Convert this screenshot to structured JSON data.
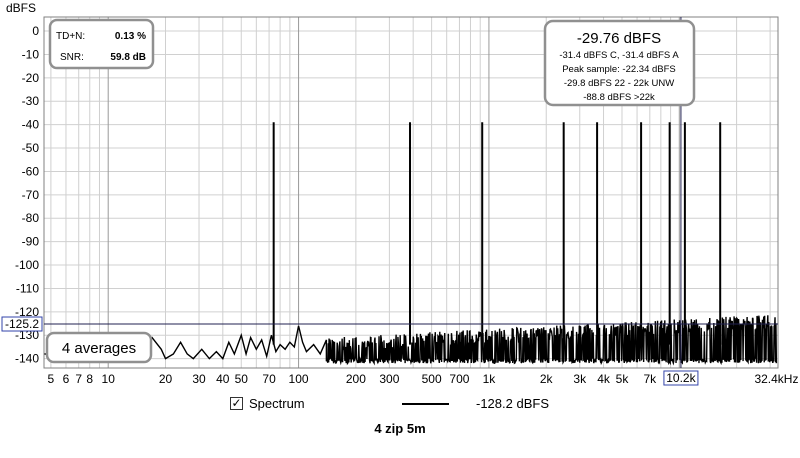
{
  "chart_data": {
    "type": "line",
    "ylabel": "dBFS",
    "y_ticks": [
      0,
      -10,
      -20,
      -30,
      -40,
      -50,
      -60,
      -70,
      -80,
      -90,
      -100,
      -110,
      -120,
      -130,
      -140
    ],
    "ylim": [
      -144,
      6
    ],
    "x_scale": "log",
    "xlim": [
      4.6,
      33000
    ],
    "x_tick_labels": [
      {
        "x": 5,
        "label": "5"
      },
      {
        "x": 6,
        "label": "6"
      },
      {
        "x": 7,
        "label": "7"
      },
      {
        "x": 8,
        "label": "8"
      },
      {
        "x": 10,
        "label": "10"
      },
      {
        "x": 20,
        "label": "20"
      },
      {
        "x": 30,
        "label": "30"
      },
      {
        "x": 40,
        "label": "40"
      },
      {
        "x": 50,
        "label": "50"
      },
      {
        "x": 70,
        "label": "70"
      },
      {
        "x": 100,
        "label": "100"
      },
      {
        "x": 200,
        "label": "200"
      },
      {
        "x": 300,
        "label": "300"
      },
      {
        "x": 500,
        "label": "500"
      },
      {
        "x": 700,
        "label": "700"
      },
      {
        "x": 1000,
        "label": "1k"
      },
      {
        "x": 2000,
        "label": "2k"
      },
      {
        "x": 3000,
        "label": "3k"
      },
      {
        "x": 4000,
        "label": "4k"
      },
      {
        "x": 5000,
        "label": "5k"
      },
      {
        "x": 7000,
        "label": "7k"
      },
      {
        "x": 32400,
        "label": "32.4kHz"
      }
    ],
    "cursor": {
      "x": 10200,
      "x_label": "10.2k",
      "y": -125.2,
      "y_label": "-125.2"
    },
    "peaks": [
      {
        "x": 74,
        "y": -39
      },
      {
        "x": 385,
        "y": -39
      },
      {
        "x": 922,
        "y": -39
      },
      {
        "x": 2470,
        "y": -39
      },
      {
        "x": 3700,
        "y": -39
      },
      {
        "x": 6300,
        "y": -39
      },
      {
        "x": 8900,
        "y": -39
      },
      {
        "x": 10700,
        "y": -39
      },
      {
        "x": 16400,
        "y": -39
      }
    ],
    "noise_low_curve": [
      [
        4.6,
        -138
      ],
      [
        8,
        -139
      ],
      [
        12,
        -140
      ],
      [
        15,
        -136
      ],
      [
        17,
        -131
      ],
      [
        19,
        -136
      ],
      [
        20,
        -140
      ],
      [
        22,
        -138
      ],
      [
        24,
        -133
      ],
      [
        26,
        -138
      ],
      [
        28,
        -140
      ],
      [
        31,
        -136
      ],
      [
        34,
        -140
      ],
      [
        37,
        -137
      ],
      [
        40,
        -140
      ],
      [
        43,
        -133
      ],
      [
        46,
        -138
      ],
      [
        50,
        -130
      ],
      [
        53,
        -138
      ],
      [
        56,
        -131
      ],
      [
        60,
        -136
      ],
      [
        64,
        -132
      ],
      [
        68,
        -139
      ],
      [
        72,
        -130
      ],
      [
        76,
        -137
      ],
      [
        80,
        -134
      ],
      [
        85,
        -136
      ],
      [
        90,
        -133
      ],
      [
        95,
        -135
      ],
      [
        100,
        -126
      ],
      [
        105,
        -133
      ],
      [
        110,
        -137
      ],
      [
        120,
        -134
      ],
      [
        130,
        -138
      ],
      [
        140,
        -132
      ]
    ],
    "noise_floor": {
      "x_start": 140,
      "x_end": 32400,
      "floor": -140,
      "top_low": -131,
      "top_high": -121
    },
    "series": [
      {
        "name": "Spectrum",
        "value_label": "-128.2 dBFS",
        "color": "#000000"
      }
    ]
  },
  "info_box": {
    "tdn_label": "TD+N:",
    "tdn_value": "0.13 %",
    "snr_label": "SNR:",
    "snr_value": "59.8 dB"
  },
  "level_box": {
    "main": "-29.76 dBFS",
    "line1": "-31.4 dBFS C, -31.4 dBFS A",
    "line2": "Peak sample: -22.34 dBFS",
    "line3": "-29.8 dBFS 22 - 22k UNW",
    "line4": "-88.8 dBFS >22k"
  },
  "averages_label": "4 averages",
  "legend": {
    "checkbox_checked": true,
    "label": "Spectrum",
    "value": "-128.2 dBFS"
  },
  "subtitle": "4 zip 5m"
}
